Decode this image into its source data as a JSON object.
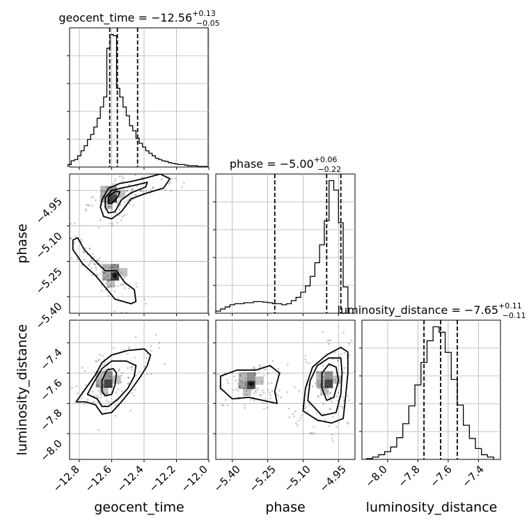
{
  "chart_data": [
    {
      "panel": "geocent_time-histogram",
      "type": "bar",
      "title": {
        "name": "geocent_time",
        "eq": " = ",
        "median": "−12.56",
        "plus": "+0.13",
        "minus": "−0.05"
      },
      "x": [
        -12.86,
        -12.84,
        -12.82,
        -12.8,
        -12.78,
        -12.76,
        -12.74,
        -12.72,
        -12.7,
        -12.68,
        -12.66,
        -12.64,
        -12.62,
        -12.6,
        -12.58,
        -12.56,
        -12.54,
        -12.52,
        -12.5,
        -12.48,
        -12.46,
        -12.44,
        -12.42,
        -12.4,
        -12.38,
        -12.36,
        -12.34,
        -12.32,
        -12.3,
        -12.28,
        -12.26,
        -12.24,
        -12.22,
        -12.2,
        -12.18,
        -12.16,
        -12.14,
        -12.12,
        -12.1,
        -12.08,
        -12.06,
        -12.04,
        -12.02
      ],
      "values": [
        0.2,
        0.5,
        0.6,
        0.9,
        1.3,
        1.7,
        2.2,
        2.6,
        3.2,
        3.9,
        4.8,
        5.6,
        9.5,
        10.6,
        10.5,
        6.3,
        5.6,
        4.8,
        4.1,
        3.3,
        2.9,
        2.3,
        1.9,
        1.6,
        1.3,
        1.1,
        0.9,
        0.7,
        0.6,
        0.5,
        0.45,
        0.35,
        0.3,
        0.25,
        0.2,
        0.2,
        0.15,
        0.1,
        0.1,
        0.1,
        0.05,
        0.05,
        0.05
      ],
      "quantiles": [
        -12.612,
        -12.565,
        -12.44
      ],
      "xlim": [
        -12.86,
        -12.0
      ],
      "xticks": [
        -12.8,
        -12.6,
        -12.4,
        -12.2,
        -12.0
      ]
    },
    {
      "panel": "phase-histogram",
      "type": "bar",
      "title": {
        "name": "phase",
        "eq": " = ",
        "median": "−5.00",
        "plus": "+0.06",
        "minus": "−0.22"
      },
      "x": [
        -5.46,
        -5.44,
        -5.42,
        -5.4,
        -5.38,
        -5.36,
        -5.34,
        -5.32,
        -5.3,
        -5.28,
        -5.26,
        -5.24,
        -5.22,
        -5.2,
        -5.18,
        -5.16,
        -5.14,
        -5.12,
        -5.1,
        -5.08,
        -5.06,
        -5.04,
        -5.02,
        -5.0,
        -4.98,
        -4.96,
        -4.94,
        -4.92
      ],
      "values": [
        0.2,
        0.4,
        0.6,
        0.8,
        0.9,
        0.9,
        1.0,
        1.0,
        1.1,
        1.1,
        1.05,
        1.0,
        0.9,
        0.9,
        0.8,
        0.9,
        1.2,
        1.5,
        2.0,
        2.6,
        3.5,
        4.8,
        6.5,
        8.8,
        12.6,
        11.7,
        8.6,
        2.5
      ],
      "quantiles": [
        -5.22,
        -5.0,
        -4.94
      ],
      "xlim": [
        -5.47,
        -4.88
      ],
      "xticks": [
        -5.4,
        -5.25,
        -5.1,
        -4.95
      ]
    },
    {
      "panel": "luminosity_distance-histogram",
      "type": "bar",
      "title": {
        "name": "luminosity_distance",
        "eq": " = ",
        "median": "−7.65",
        "plus": "+0.11",
        "minus": "−0.11"
      },
      "x": [
        -8.12,
        -8.08,
        -8.04,
        -8.0,
        -7.96,
        -7.92,
        -7.88,
        -7.84,
        -7.8,
        -7.76,
        -7.72,
        -7.68,
        -7.64,
        -7.6,
        -7.56,
        -7.52,
        -7.48,
        -7.44,
        -7.4,
        -7.36,
        -7.32
      ],
      "values": [
        0.1,
        0.3,
        0.6,
        1.0,
        1.6,
        2.8,
        4.6,
        6.9,
        9.6,
        12.5,
        15.3,
        17.1,
        16.4,
        13.8,
        10.3,
        7.0,
        4.4,
        2.7,
        1.4,
        0.6,
        0.3
      ],
      "quantiles": [
        -7.76,
        -7.65,
        -7.54
      ],
      "xlim": [
        -8.17,
        -7.25
      ],
      "xticks": [
        -8.0,
        -7.8,
        -7.6,
        -7.4
      ]
    },
    {
      "panel": "phase-vs-geocent_time",
      "type": "scatter",
      "contours": [
        {
          "level": "outer",
          "points": [
            [
              -12.66,
              -4.99
            ],
            [
              -12.62,
              -4.94
            ],
            [
              -12.55,
              -4.92
            ],
            [
              -12.47,
              -4.91
            ],
            [
              -12.38,
              -4.895
            ],
            [
              -12.3,
              -4.88
            ],
            [
              -12.24,
              -4.9
            ],
            [
              -12.28,
              -4.94
            ],
            [
              -12.38,
              -4.96
            ],
            [
              -12.48,
              -4.985
            ],
            [
              -12.54,
              -5.04
            ],
            [
              -12.6,
              -5.07
            ],
            [
              -12.65,
              -5.06
            ],
            [
              -12.67,
              -5.02
            ],
            [
              -12.66,
              -4.99
            ]
          ]
        },
        {
          "level": "middle",
          "points": [
            [
              -12.64,
              -4.98
            ],
            [
              -12.6,
              -4.95
            ],
            [
              -12.54,
              -4.94
            ],
            [
              -12.47,
              -4.93
            ],
            [
              -12.38,
              -4.915
            ],
            [
              -12.39,
              -4.935
            ],
            [
              -12.48,
              -4.96
            ],
            [
              -12.54,
              -4.99
            ],
            [
              -12.58,
              -5.04
            ],
            [
              -12.62,
              -5.045
            ],
            [
              -12.64,
              -5.02
            ],
            [
              -12.64,
              -4.98
            ]
          ]
        },
        {
          "level": "inner",
          "points": [
            [
              -12.62,
              -4.975
            ],
            [
              -12.58,
              -4.955
            ],
            [
              -12.55,
              -4.955
            ],
            [
              -12.56,
              -4.975
            ],
            [
              -12.6,
              -5.005
            ],
            [
              -12.62,
              -5.005
            ],
            [
              -12.62,
              -4.975
            ]
          ]
        },
        {
          "level": "lower",
          "points": [
            [
              -12.84,
              -5.16
            ],
            [
              -12.81,
              -5.15
            ],
            [
              -12.77,
              -5.2
            ],
            [
              -12.7,
              -5.25
            ],
            [
              -12.64,
              -5.29
            ],
            [
              -12.57,
              -5.29
            ],
            [
              -12.52,
              -5.34
            ],
            [
              -12.46,
              -5.37
            ],
            [
              -12.45,
              -5.42
            ],
            [
              -12.48,
              -5.43
            ],
            [
              -12.58,
              -5.41
            ],
            [
              -12.64,
              -5.36
            ],
            [
              -12.7,
              -5.31
            ],
            [
              -12.78,
              -5.26
            ],
            [
              -12.84,
              -5.2
            ],
            [
              -12.84,
              -5.16
            ]
          ]
        },
        {
          "level": "lower-inner",
          "points": [
            [
              -12.58,
              -5.3
            ],
            [
              -12.57,
              -5.31
            ],
            [
              -12.58,
              -5.32
            ],
            [
              -12.59,
              -5.31
            ],
            [
              -12.58,
              -5.3
            ]
          ]
        }
      ],
      "xlim": [
        -12.86,
        -12.0
      ],
      "ylim": [
        -5.47,
        -4.88
      ],
      "yticks": [
        -4.95,
        -5.1,
        -5.25,
        -5.4
      ]
    },
    {
      "panel": "luminosity_distance-vs-geocent_time",
      "type": "scatter",
      "contours": [
        {
          "level": "outer",
          "points": [
            [
              -12.82,
              -7.79
            ],
            [
              -12.76,
              -7.7
            ],
            [
              -12.7,
              -7.61
            ],
            [
              -12.66,
              -7.53
            ],
            [
              -12.6,
              -7.48
            ],
            [
              -12.5,
              -7.45
            ],
            [
              -12.4,
              -7.44
            ],
            [
              -12.36,
              -7.48
            ],
            [
              -12.38,
              -7.55
            ],
            [
              -12.42,
              -7.62
            ],
            [
              -12.48,
              -7.71
            ],
            [
              -12.54,
              -7.79
            ],
            [
              -12.6,
              -7.86
            ],
            [
              -12.66,
              -7.87
            ],
            [
              -12.7,
              -7.81
            ],
            [
              -12.76,
              -7.79
            ],
            [
              -12.82,
              -7.79
            ]
          ]
        },
        {
          "level": "middle",
          "points": [
            [
              -12.75,
              -7.74
            ],
            [
              -12.71,
              -7.66
            ],
            [
              -12.66,
              -7.57
            ],
            [
              -12.6,
              -7.52
            ],
            [
              -12.51,
              -7.52
            ],
            [
              -12.45,
              -7.55
            ],
            [
              -12.46,
              -7.62
            ],
            [
              -12.5,
              -7.7
            ],
            [
              -12.56,
              -7.77
            ],
            [
              -12.62,
              -7.82
            ],
            [
              -12.66,
              -7.82
            ],
            [
              -12.69,
              -7.77
            ],
            [
              -12.75,
              -7.74
            ]
          ]
        },
        {
          "level": "inner",
          "points": [
            [
              -12.66,
              -7.65
            ],
            [
              -12.63,
              -7.58
            ],
            [
              -12.59,
              -7.57
            ],
            [
              -12.57,
              -7.6
            ],
            [
              -12.58,
              -7.68
            ],
            [
              -12.6,
              -7.74
            ],
            [
              -12.64,
              -7.75
            ],
            [
              -12.66,
              -7.72
            ],
            [
              -12.66,
              -7.65
            ]
          ]
        }
      ],
      "xlim": [
        -12.86,
        -12.0
      ],
      "ylim": [
        -8.17,
        -7.25
      ],
      "yticks": [
        -7.4,
        -7.6,
        -7.8,
        -8.0
      ]
    },
    {
      "panel": "luminosity_distance-vs-phase",
      "type": "scatter",
      "contours": [
        {
          "level": "outer-right",
          "points": [
            [
              -5.1,
              -7.85
            ],
            [
              -5.09,
              -7.7
            ],
            [
              -5.06,
              -7.56
            ],
            [
              -5.0,
              -7.48
            ],
            [
              -4.94,
              -7.43
            ],
            [
              -4.91,
              -7.46
            ],
            [
              -4.91,
              -7.6
            ],
            [
              -4.92,
              -7.76
            ],
            [
              -4.93,
              -7.9
            ],
            [
              -4.98,
              -7.93
            ],
            [
              -5.04,
              -7.91
            ],
            [
              -5.1,
              -7.85
            ]
          ]
        },
        {
          "level": "middle-right",
          "points": [
            [
              -5.08,
              -7.78
            ],
            [
              -5.07,
              -7.65
            ],
            [
              -5.04,
              -7.55
            ],
            [
              -4.99,
              -7.5
            ],
            [
              -4.94,
              -7.5
            ],
            [
              -4.935,
              -7.6
            ],
            [
              -4.94,
              -7.74
            ],
            [
              -4.96,
              -7.86
            ],
            [
              -5.02,
              -7.88
            ],
            [
              -5.08,
              -7.78
            ]
          ]
        },
        {
          "level": "inner-right",
          "points": [
            [
              -5.02,
              -7.7
            ],
            [
              -5.02,
              -7.6
            ],
            [
              -4.99,
              -7.54
            ],
            [
              -4.96,
              -7.56
            ],
            [
              -4.95,
              -7.65
            ],
            [
              -4.97,
              -7.76
            ],
            [
              -5.0,
              -7.78
            ],
            [
              -5.02,
              -7.7
            ]
          ]
        },
        {
          "level": "left",
          "points": [
            [
              -5.45,
              -7.62
            ],
            [
              -5.38,
              -7.58
            ],
            [
              -5.3,
              -7.58
            ],
            [
              -5.24,
              -7.55
            ],
            [
              -5.2,
              -7.6
            ],
            [
              -5.22,
              -7.72
            ],
            [
              -5.21,
              -7.8
            ],
            [
              -5.27,
              -7.78
            ],
            [
              -5.33,
              -7.76
            ],
            [
              -5.4,
              -7.77
            ],
            [
              -5.45,
              -7.7
            ],
            [
              -5.45,
              -7.62
            ]
          ]
        },
        {
          "level": "left-inner",
          "points": [
            [
              -5.32,
              -7.66
            ],
            [
              -5.31,
              -7.67
            ],
            [
              -5.32,
              -7.68
            ],
            [
              -5.33,
              -7.67
            ],
            [
              -5.32,
              -7.66
            ]
          ]
        }
      ],
      "xlim": [
        -5.47,
        -4.88
      ],
      "ylim": [
        -8.17,
        -7.25
      ]
    }
  ],
  "labels": {
    "x1": "geocent_time",
    "x2": "phase",
    "x3": "luminosity_distance",
    "y1": "phase",
    "y2": "luminosity_distance"
  },
  "ticks": {
    "geocent_time": [
      "−12.8",
      "−12.6",
      "−12.4",
      "−12.2",
      "−12.0"
    ],
    "phase": [
      "−5.40",
      "−5.25",
      "−5.10",
      "−4.95"
    ],
    "luminosity_distance": [
      "−8.0",
      "−7.8",
      "−7.6",
      "−7.4"
    ]
  }
}
